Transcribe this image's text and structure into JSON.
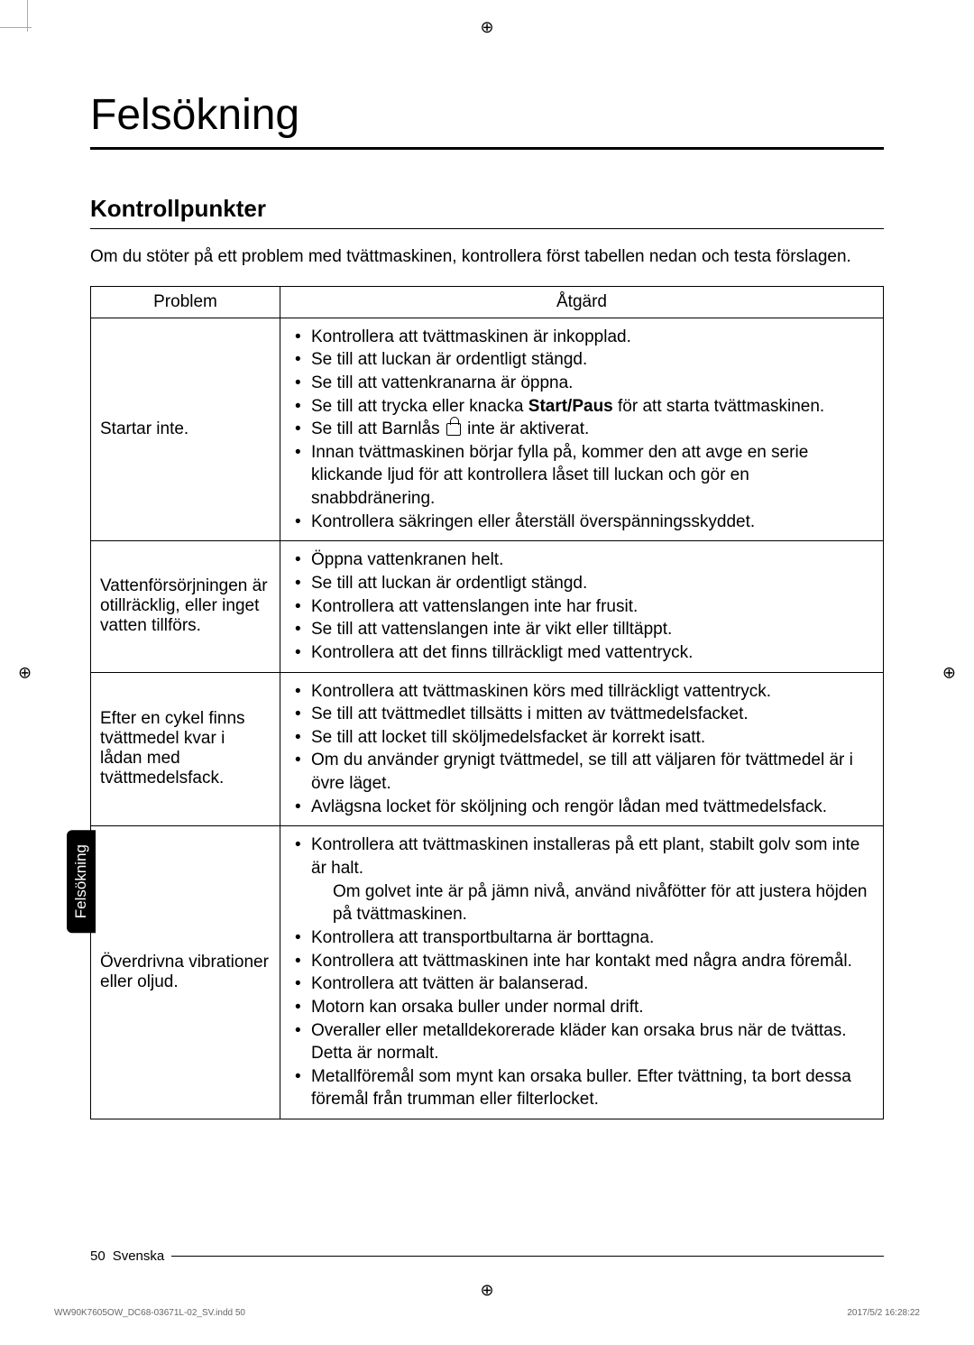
{
  "title": "Felsökning",
  "subtitle": "Kontrollpunkter",
  "intro": "Om du stöter på ett problem med tvättmaskinen, kontrollera först tabellen nedan och testa förslagen.",
  "table": {
    "headers": {
      "problem": "Problem",
      "action": "Åtgärd"
    },
    "rows": [
      {
        "problem": "Startar inte.",
        "actions": [
          "Kontrollera att tvättmaskinen är inkopplad.",
          "Se till att luckan är ordentligt stängd.",
          "Se till att vattenkranarna är öppna.",
          "Se till att trycka eller knacka <b>Start/Paus</b> för att starta tvättmaskinen.",
          "Se till att Barnlås <span class=\"lock-icon\" data-name=\"lock-icon\" data-interactable=\"false\"></span> inte är aktiverat.",
          "Innan tvättmaskinen börjar fylla på, kommer den att avge en serie klickande ljud för att kontrollera låset till luckan och gör en snabbdränering.",
          "Kontrollera säkringen eller återställ överspänningsskyddet."
        ]
      },
      {
        "problem": "Vattenförsörjningen är otillräcklig, eller inget vatten tillförs.",
        "actions": [
          "Öppna vattenkranen helt.",
          "Se till att luckan är ordentligt stängd.",
          "Kontrollera att vattenslangen inte har frusit.",
          "Se till att vattenslangen inte är vikt eller tilltäppt.",
          "Kontrollera att det finns tillräckligt med vattentryck."
        ]
      },
      {
        "problem": "Efter en cykel finns tvättmedel kvar i lådan med tvättmedelsfack.",
        "actions": [
          "Kontrollera att tvättmaskinen körs med tillräckligt vattentryck.",
          "Se till att tvättmedlet tillsätts i mitten av tvättmedelsfacket.",
          "Se till att locket till sköljmedelsfacket  är korrekt isatt.",
          "Om du använder grynigt tvättmedel, se till att väljaren för tvättmedel är i övre läget.",
          "Avlägsna locket för sköljning och rengör lådan med tvättmedelsfack."
        ]
      },
      {
        "problem": "Överdrivna vibrationer eller oljud.",
        "actions": [
          "Kontrollera att tvättmaskinen installeras på ett plant, stabilt golv som inte är halt.<div class=\"sub-line\">Om golvet inte är på jämn nivå, använd nivåfötter för att justera höjden på tvättmaskinen.</div>",
          "Kontrollera att transportbultarna är borttagna.",
          "Kontrollera att tvättmaskinen inte har kontakt med några andra föremål.",
          "Kontrollera att tvätten är balanserad.",
          "Motorn kan orsaka buller under normal drift.",
          "Overaller eller metalldekorerade kläder kan orsaka brus när de tvättas. Detta är normalt.",
          "Metallföremål som mynt kan orsaka buller. Efter tvättning, ta bort dessa föremål från trumman eller filterlocket."
        ]
      }
    ]
  },
  "sideTab": "Felsökning",
  "footer": {
    "page": "50",
    "lang": "Svenska"
  },
  "printFooter": {
    "left": "WW90K7605OW_DC68-03671L-02_SV.indd   50",
    "right": "2017/5/2   16:28:22"
  }
}
